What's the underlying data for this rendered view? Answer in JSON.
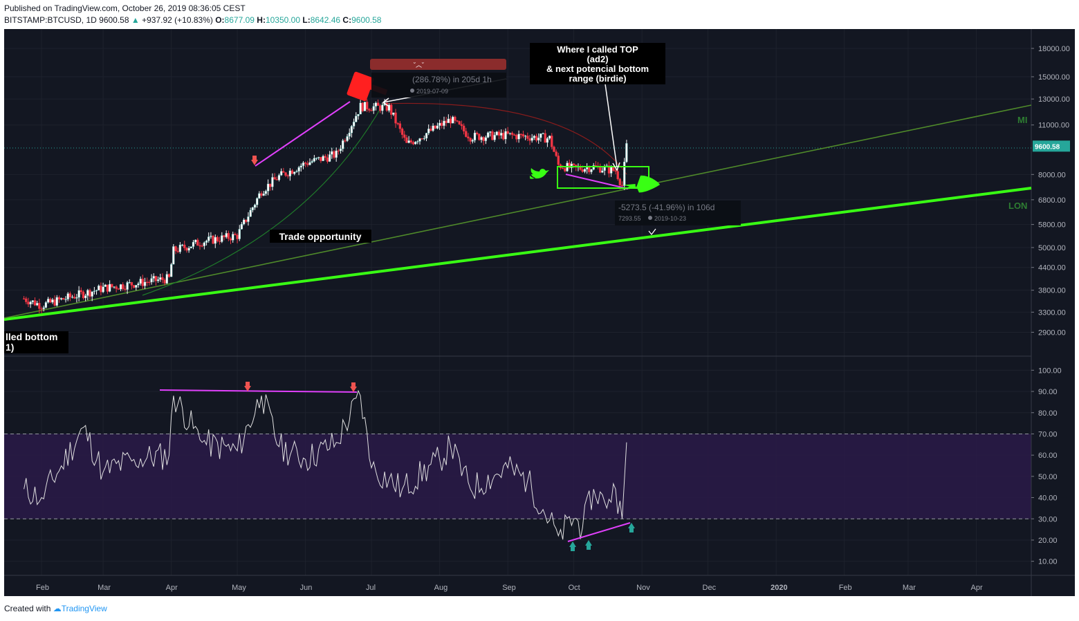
{
  "header": {
    "published": "Published on TradingView.com, October 26, 2019 08:36:05 CEST",
    "symbol": "BITSTAMP:BTCUSD, 1D",
    "last": "9600.58",
    "change": "+937.92 (+10.83%)",
    "o_label": "O:",
    "o_val": "8677.09",
    "h_label": "H:",
    "h_val": "10350.00",
    "l_label": "L:",
    "l_val": "8642.46",
    "c_label": "C:",
    "c_val": "9600.58"
  },
  "footer": {
    "created": "Created with",
    "brand": "TradingView"
  },
  "colors": {
    "background": "#131722",
    "rsi_band": "#2a1a48",
    "trend": "#39ff14",
    "candle_up": "#ffffff",
    "candle_down": "#f23645",
    "magenta": "#e040fb",
    "price_label": "#26a69a"
  },
  "annotations": {
    "top_call": [
      "Where I called TOP",
      "(ad2)",
      "& next potencial bottom",
      "range (birdie)"
    ],
    "trade": "Trade opportunity",
    "bottom_partial": [
      "lled bottom",
      "1)"
    ],
    "measure_top": "(286.78%) in 205d 1h",
    "measure_top_date": "2019-07-09",
    "measure_bottom": "-5273.5 (-41.96%) in 106d",
    "measure_bottom_price": "7293.55",
    "measure_bottom_date": "2019-10-23",
    "label_mi": "MI",
    "label_lon": "LON",
    "sad": "˘︿˘"
  },
  "chart_data": [
    {
      "type": "candlestick",
      "title": "BITSTAMP:BTCUSD, 1D",
      "scale": "log",
      "ylim": [
        2600,
        19500
      ],
      "y_ticks": [
        "18000.00",
        "15000.00",
        "13000.00",
        "11000.00",
        "9600.58",
        "8000.00",
        "6800.00",
        "5800.00",
        "5000.00",
        "4400.00",
        "3800.00",
        "3300.00",
        "2900.00"
      ],
      "x_ticks": [
        "Feb",
        "Mar",
        "Apr",
        "May",
        "Jun",
        "Jul",
        "Aug",
        "Sep",
        "Oct",
        "Nov",
        "Dec",
        "2020",
        "Feb",
        "Mar",
        "Apr"
      ],
      "x": [
        "2019-01-24",
        "2019-02-01",
        "2019-02-15",
        "2019-03-01",
        "2019-03-31",
        "2019-04-02",
        "2019-04-15",
        "2019-05-01",
        "2019-05-12",
        "2019-05-20",
        "2019-06-01",
        "2019-06-15",
        "2019-06-26",
        "2019-07-09",
        "2019-07-17",
        "2019-08-06",
        "2019-08-15",
        "2019-09-01",
        "2019-09-20",
        "2019-09-24",
        "2019-10-01",
        "2019-10-10",
        "2019-10-20",
        "2019-10-23",
        "2019-10-25"
      ],
      "close": [
        3600,
        3450,
        3650,
        3850,
        4100,
        4900,
        5200,
        5400,
        7200,
        7900,
        8600,
        9100,
        12400,
        12300,
        9700,
        11400,
        10200,
        10300,
        10100,
        8500,
        8300,
        8400,
        8200,
        7450,
        9600
      ],
      "last_price": 9600.58
    },
    {
      "type": "line",
      "title": "RSI",
      "ylim": [
        5,
        105
      ],
      "y_ticks": [
        "100.00",
        "90.00",
        "80.00",
        "70.00",
        "60.00",
        "50.00",
        "40.00",
        "30.00",
        "20.00",
        "10.00"
      ],
      "band": [
        30,
        70
      ],
      "x": [
        "2019-01-24",
        "2019-02-01",
        "2019-02-10",
        "2019-02-20",
        "2019-03-01",
        "2019-03-15",
        "2019-03-31",
        "2019-04-02",
        "2019-04-15",
        "2019-05-01",
        "2019-05-12",
        "2019-05-20",
        "2019-06-01",
        "2019-06-15",
        "2019-06-26",
        "2019-07-01",
        "2019-07-15",
        "2019-08-01",
        "2019-08-06",
        "2019-08-15",
        "2019-09-01",
        "2019-09-10",
        "2019-09-24",
        "2019-10-01",
        "2019-10-05",
        "2019-10-10",
        "2019-10-15",
        "2019-10-20",
        "2019-10-23",
        "2019-10-25"
      ],
      "values": [
        44,
        40,
        55,
        73,
        52,
        58,
        60,
        88,
        66,
        62,
        88,
        64,
        58,
        66,
        88,
        54,
        44,
        58,
        64,
        44,
        54,
        48,
        22,
        30,
        26,
        44,
        38,
        44,
        30,
        66
      ]
    }
  ]
}
